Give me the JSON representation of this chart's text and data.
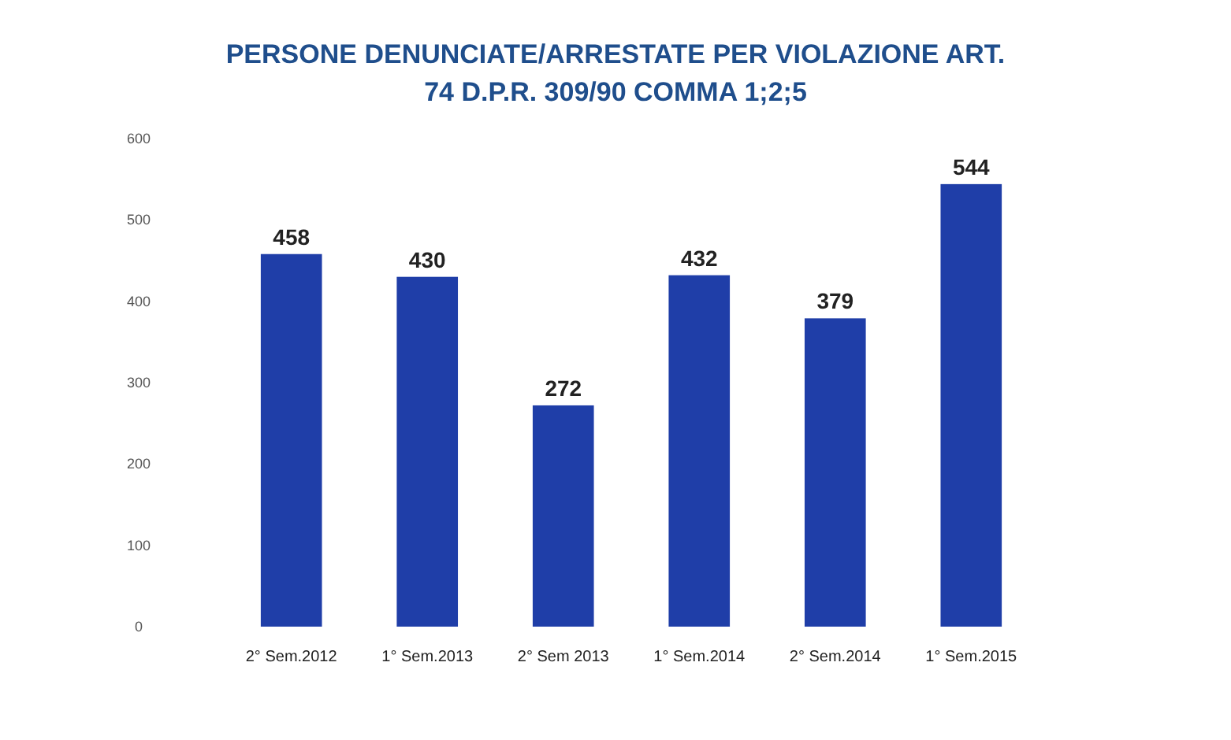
{
  "chart_data": {
    "type": "bar",
    "title": "PERSONE DENUNCIATE/ARRESTATE PER VIOLAZIONE ART. 74 D.P.R. 309/90 COMMA 1;2;5",
    "categories": [
      "2° Sem.2012",
      "1° Sem.2013",
      "2° Sem 2013",
      "1° Sem.2014",
      "2° Sem.2014",
      "1° Sem.2015"
    ],
    "values": [
      458,
      430,
      272,
      432,
      379,
      544
    ],
    "color": "#1f3ea8",
    "ylim": [
      0,
      600
    ],
    "yticks": [
      0,
      100,
      200,
      300,
      400,
      500,
      600
    ],
    "data_labels": true
  }
}
